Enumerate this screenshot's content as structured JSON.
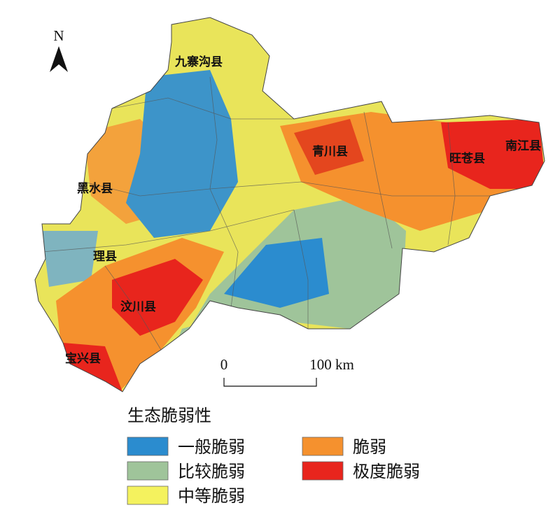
{
  "north_arrow": {
    "label": "N"
  },
  "places": [
    {
      "label": "九寨沟县"
    },
    {
      "label": "青川县"
    },
    {
      "label": "旺苍县"
    },
    {
      "label": "南江县"
    },
    {
      "label": "黑水县"
    },
    {
      "label": "理县"
    },
    {
      "label": "汶川县"
    },
    {
      "label": "宝兴县"
    }
  ],
  "scale_bar": {
    "start": "0",
    "end": "100 km"
  },
  "legend": {
    "title": "生态脆弱性",
    "items": [
      {
        "label": "一般脆弱",
        "color": "#2b8ccf"
      },
      {
        "label": "比较脆弱",
        "color": "#9fc49a"
      },
      {
        "label": "中等脆弱",
        "color": "#f4f25e"
      },
      {
        "label": "脆弱",
        "color": "#f5912e"
      },
      {
        "label": "极度脆弱",
        "color": "#e8251d"
      }
    ]
  }
}
